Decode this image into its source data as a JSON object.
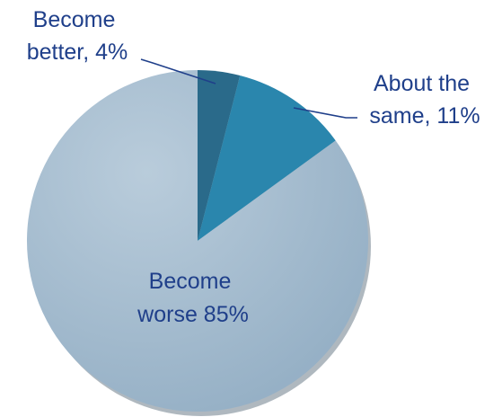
{
  "chart_data": {
    "type": "pie",
    "slices": [
      {
        "label_lines": [
          "Become",
          "better, 4%"
        ],
        "value": 4,
        "color": "#2a6a8a"
      },
      {
        "label_lines": [
          "About the",
          "same, 11%"
        ],
        "value": 11,
        "color": "#2a86ad"
      },
      {
        "label_lines": [
          "Become",
          "worse 85%"
        ],
        "value": 85,
        "color": "#a7bfd2"
      }
    ],
    "legend": "none"
  }
}
